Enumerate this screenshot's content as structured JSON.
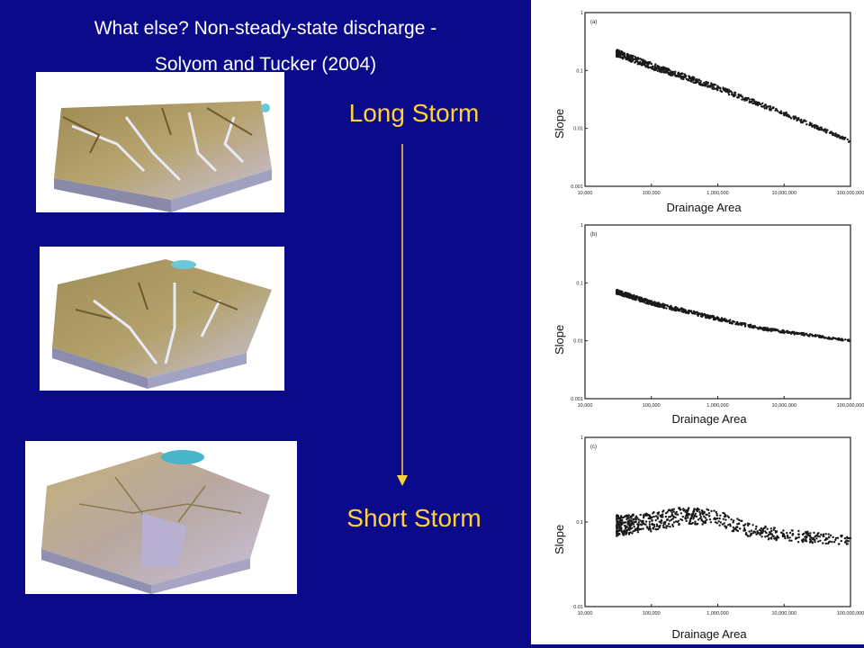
{
  "title": {
    "line1": "What else?  Non-steady-state discharge -",
    "line2": "Solyom and Tucker  (2004)"
  },
  "labels": {
    "long_storm": "Long Storm",
    "short_storm": "Short Storm"
  },
  "colors": {
    "background": "#0a0a8a",
    "storm_label": "#ffd23a",
    "arrow": "#ffd23a"
  },
  "chart_data": [
    {
      "type": "scatter",
      "panel_label": "(a)",
      "xlabel": "Drainage Area",
      "ylabel": "Slope",
      "x_scale": "log",
      "y_scale": "log",
      "xlim": [
        10000,
        100000000
      ],
      "ylim": [
        0.001,
        1
      ],
      "x_ticks": [
        "10,000",
        "100,000",
        "1,000,000",
        "10,000,000",
        "100,000,000"
      ],
      "y_ticks": [
        "1",
        "0.1",
        "0.01",
        "0.001"
      ],
      "trend": {
        "x": [
          30000,
          100000,
          1000000,
          10000000,
          100000000
        ],
        "y": [
          0.2,
          0.12,
          0.05,
          0.018,
          0.006
        ]
      },
      "scatter_spread": 0.12
    },
    {
      "type": "scatter",
      "panel_label": "(b)",
      "xlabel": "Drainage Area",
      "ylabel": "Slope",
      "x_scale": "log",
      "y_scale": "log",
      "xlim": [
        10000,
        100000000
      ],
      "ylim": [
        0.001,
        1
      ],
      "x_ticks": [
        "10,000",
        "100,000",
        "1,000,000",
        "10,000,000",
        "100,000,000"
      ],
      "y_ticks": [
        "1",
        "0.1",
        "0.01",
        "0.001"
      ],
      "trend": {
        "x": [
          30000,
          100000,
          1000000,
          5000000,
          100000000
        ],
        "y": [
          0.07,
          0.045,
          0.024,
          0.016,
          0.01
        ]
      },
      "scatter_spread": 0.08
    },
    {
      "type": "scatter",
      "panel_label": "(c)",
      "xlabel": "Drainage Area",
      "ylabel": "Slope",
      "x_scale": "log",
      "y_scale": "log",
      "xlim": [
        10000,
        100000000
      ],
      "ylim": [
        0.01,
        1
      ],
      "x_ticks": [
        "10,000",
        "100,000",
        "1,000,000",
        "10,000,000",
        "100,000,000"
      ],
      "y_ticks": [
        "1",
        "0.1",
        "0.01"
      ],
      "trend": {
        "x": [
          30000,
          100000,
          300000,
          1000000,
          3000000,
          10000000,
          100000000
        ],
        "y": [
          0.09,
          0.1,
          0.12,
          0.11,
          0.08,
          0.07,
          0.06
        ]
      },
      "scatter_spread": 0.25
    }
  ]
}
